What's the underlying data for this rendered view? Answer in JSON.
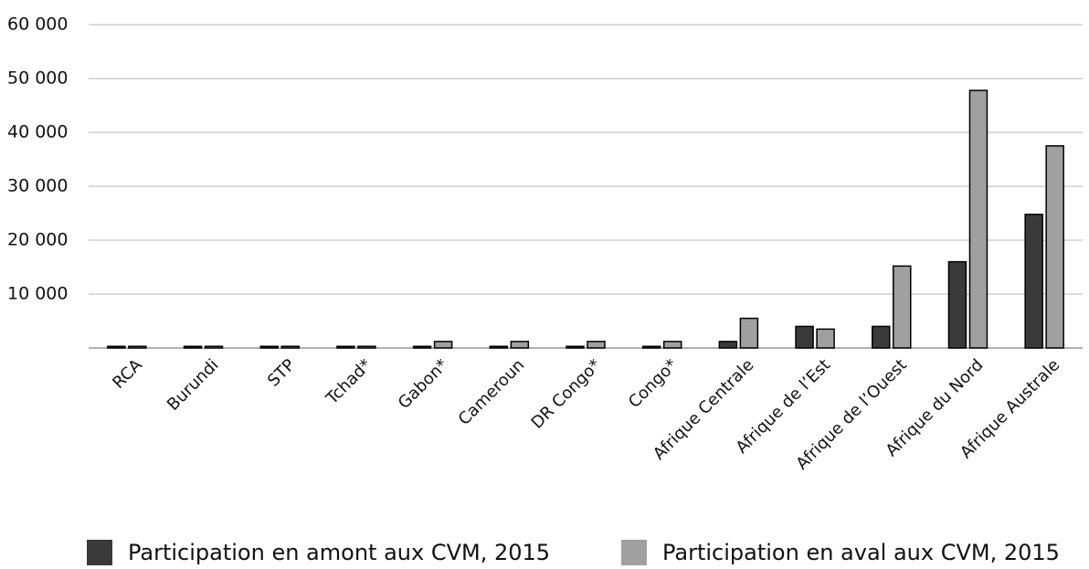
{
  "chart_data": {
    "type": "bar",
    "categories": [
      "RCA",
      "Burundi",
      "STP",
      "Tchad*",
      "Gabon*",
      "Cameroun",
      "DR Congo*",
      "Congo*",
      "Afrique Centrale",
      "Afrique de l’Est",
      "Afrique de l’Ouest",
      "Afrique du Nord",
      "Afrique Australe"
    ],
    "series": [
      {
        "name": "Participation en amont aux CVM, 2015",
        "color": "#3a3a3a",
        "values": [
          300,
          300,
          300,
          300,
          300,
          300,
          300,
          300,
          1200,
          4000,
          4000,
          16000,
          24800
        ]
      },
      {
        "name": "Participation en aval aux CVM, 2015",
        "color": "#a0a0a0",
        "values": [
          300,
          300,
          300,
          300,
          1200,
          1200,
          1200,
          1200,
          5500,
          3500,
          15200,
          47800,
          37500
        ]
      }
    ],
    "ylim": [
      0,
      60000
    ],
    "yticks": [
      {
        "value": 10000,
        "label": "10 000"
      },
      {
        "value": 20000,
        "label": "20 000"
      },
      {
        "value": 30000,
        "label": "30 000"
      },
      {
        "value": 40000,
        "label": "40 000"
      },
      {
        "value": 50000,
        "label": "50 000"
      },
      {
        "value": 60000,
        "label": "60 000"
      }
    ],
    "grid": true
  }
}
